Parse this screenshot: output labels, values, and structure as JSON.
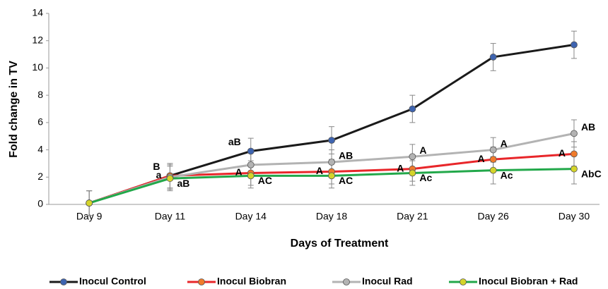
{
  "chart_data": {
    "type": "line",
    "x_label": "Days of Treatment",
    "y_label": "Fold change in TV",
    "categories": [
      "Day 9",
      "Day 11",
      "Day 14",
      "Day 18",
      "Day 21",
      "Day 26",
      "Day 30"
    ],
    "ylim": [
      0,
      14
    ],
    "yticks": [
      0,
      2,
      4,
      6,
      8,
      10,
      12,
      14
    ],
    "series": [
      {
        "name": "Inocul Control",
        "color": "#1a1a1a",
        "marker_color": "#3e64b0",
        "values": [
          0.1,
          2.1,
          3.9,
          4.7,
          7.0,
          10.8,
          11.7
        ],
        "errors": [
          0.9,
          0.9,
          0.95,
          1.0,
          1.0,
          1.0,
          1.0
        ],
        "labels": [
          null,
          "B",
          "aB",
          null,
          null,
          null,
          null
        ]
      },
      {
        "name": "Inocul Biobran",
        "color": "#e8262a",
        "marker_color": "#f07b2b",
        "values": [
          0.1,
          2.1,
          2.3,
          2.4,
          2.6,
          3.3,
          3.7
        ],
        "errors": [
          0.9,
          0.9,
          0.9,
          0.9,
          0.9,
          0.9,
          0.9
        ],
        "labels": [
          null,
          "a",
          "A",
          "A",
          "A",
          "A",
          "A"
        ]
      },
      {
        "name": "Inocul Rad",
        "color": "#b3b3b3",
        "marker_color": "#b3b3b3",
        "values": [
          0.1,
          2.0,
          2.9,
          3.1,
          3.5,
          4.0,
          5.2
        ],
        "errors": [
          0.9,
          0.9,
          0.9,
          0.9,
          0.9,
          0.9,
          1.0
        ],
        "labels": [
          null,
          null,
          null,
          "AB",
          "A",
          "A",
          "AB"
        ]
      },
      {
        "name": "Inocul Biobran + Rad",
        "color": "#22a84a",
        "marker_color": "#d4d42a",
        "values": [
          0.1,
          1.9,
          2.1,
          2.1,
          2.3,
          2.5,
          2.6
        ],
        "errors": [
          0.9,
          0.9,
          0.9,
          0.9,
          0.9,
          1.0,
          1.1
        ],
        "labels": [
          null,
          "aB",
          "AC",
          "AC",
          "Ac",
          "Ac",
          "AbC"
        ]
      }
    ],
    "grid": false
  }
}
